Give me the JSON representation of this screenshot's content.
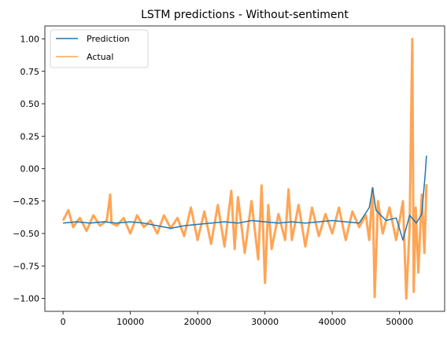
{
  "chart_data": {
    "type": "line",
    "title": "LSTM predictions - Without-sentiment",
    "xlabel": "",
    "ylabel": "",
    "xlim": [
      -2700,
      56700
    ],
    "ylim": [
      -1.1,
      1.1
    ],
    "xticks": [
      0,
      10000,
      20000,
      30000,
      40000,
      50000
    ],
    "xtick_labels": [
      "0",
      "10000",
      "20000",
      "30000",
      "40000",
      "50000"
    ],
    "yticks": [
      -1.0,
      -0.75,
      -0.5,
      -0.25,
      0.0,
      0.25,
      0.5,
      0.75,
      1.0
    ],
    "ytick_labels": [
      "−1.00",
      "−0.75",
      "−0.50",
      "−0.25",
      "0.00",
      "0.25",
      "0.50",
      "0.75",
      "1.00"
    ],
    "grid": false,
    "legend_position": "top-left",
    "series": [
      {
        "name": "Prediction",
        "color": "#1f77b4",
        "x": [
          0,
          2000,
          4000,
          6000,
          8000,
          10000,
          12000,
          14000,
          16000,
          18000,
          20000,
          22000,
          24000,
          26000,
          28000,
          30000,
          32000,
          34000,
          36000,
          38000,
          40000,
          42000,
          44000,
          45500,
          46000,
          46500,
          48000,
          49500,
          50500,
          51500,
          52500,
          53300,
          53800,
          54000
        ],
        "values": [
          -0.42,
          -0.41,
          -0.42,
          -0.41,
          -0.42,
          -0.41,
          -0.42,
          -0.44,
          -0.46,
          -0.44,
          -0.43,
          -0.42,
          -0.41,
          -0.42,
          -0.4,
          -0.41,
          -0.42,
          -0.41,
          -0.42,
          -0.41,
          -0.4,
          -0.41,
          -0.42,
          -0.3,
          -0.15,
          -0.32,
          -0.4,
          -0.38,
          -0.55,
          -0.36,
          -0.42,
          -0.35,
          -0.05,
          0.1
        ]
      },
      {
        "name": "Actual",
        "color": "#ff7f0e",
        "x": [
          0,
          800,
          1500,
          2500,
          3500,
          4500,
          5500,
          6500,
          7000,
          7200,
          8000,
          9000,
          10000,
          11000,
          12000,
          13000,
          14000,
          15000,
          16000,
          17000,
          18000,
          19000,
          20000,
          21000,
          22000,
          23000,
          24000,
          25000,
          25500,
          26000,
          27000,
          28000,
          29000,
          29500,
          30000,
          30500,
          31000,
          32000,
          33000,
          33500,
          34000,
          35000,
          36000,
          37000,
          38000,
          39000,
          40000,
          41000,
          42000,
          43000,
          44000,
          45000,
          45500,
          46000,
          46300,
          46800,
          47500,
          48500,
          49500,
          50500,
          51000,
          51500,
          51900,
          52100,
          52400,
          52800,
          53300,
          53700,
          54000
        ],
        "values": [
          -0.4,
          -0.32,
          -0.45,
          -0.38,
          -0.48,
          -0.36,
          -0.44,
          -0.4,
          -0.2,
          -0.42,
          -0.44,
          -0.38,
          -0.5,
          -0.36,
          -0.45,
          -0.4,
          -0.5,
          -0.36,
          -0.46,
          -0.38,
          -0.52,
          -0.3,
          -0.55,
          -0.33,
          -0.58,
          -0.28,
          -0.6,
          -0.17,
          -0.62,
          -0.22,
          -0.65,
          -0.25,
          -0.7,
          -0.13,
          -0.88,
          -0.28,
          -0.62,
          -0.35,
          -0.55,
          -0.16,
          -0.55,
          -0.28,
          -0.6,
          -0.3,
          -0.52,
          -0.35,
          -0.5,
          -0.3,
          -0.55,
          -0.33,
          -0.45,
          -0.36,
          -0.55,
          -0.15,
          -0.99,
          -0.25,
          -0.5,
          -0.3,
          -0.55,
          -0.25,
          -1.0,
          -0.45,
          1.0,
          -0.95,
          -0.3,
          -0.8,
          -0.2,
          -0.65,
          -0.12
        ]
      }
    ]
  }
}
